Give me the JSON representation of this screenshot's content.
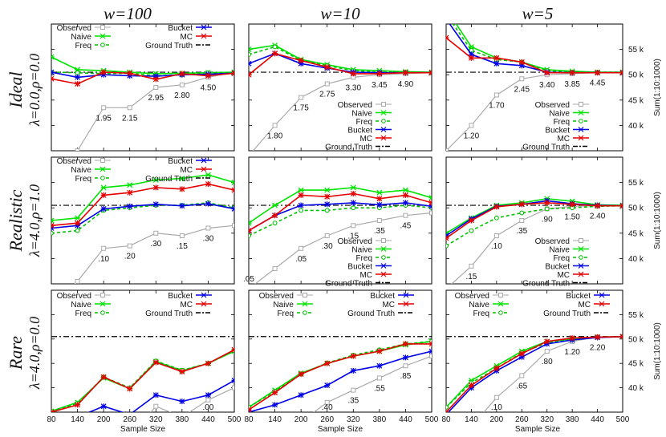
{
  "chart_data": {
    "type": "line",
    "column_titles": [
      "w=100",
      "w=10",
      "w=5"
    ],
    "row_labels": [
      {
        "name": "Ideal",
        "params": "λ=0.0,ρ=0.0"
      },
      {
        "name": "Realistic",
        "params": "λ=4.0,ρ=1.0"
      },
      {
        "name": "Rare",
        "params": "λ=4.0,ρ=0.0"
      }
    ],
    "x": [
      80,
      140,
      200,
      260,
      320,
      380,
      440,
      500
    ],
    "xlabel": "Sample Size",
    "ylabel": "Sum(1:10:1000)",
    "ylim": [
      35,
      60
    ],
    "yticks": [
      40,
      45,
      50,
      55
    ],
    "ytick_labels": [
      "40 k",
      "45 k",
      "50 k",
      "55 k"
    ],
    "ground_truth": 50.5,
    "legend_entries": [
      "Observed",
      "Naive",
      "Freq",
      "Bucket",
      "MC",
      "Ground Truth"
    ],
    "colors": {
      "Observed": "#aaaaaa",
      "Naive": "#00e400",
      "Freq": "#00c000",
      "Bucket": "#0000e6",
      "MC": "#e60000",
      "Ground Truth": "#000000"
    },
    "panels": [
      {
        "row": 0,
        "col": 0,
        "series": {
          "Observed": [
            26,
            35,
            43.5,
            43.5,
            47.5,
            48,
            49.5,
            50.5
          ],
          "Naive": [
            53.5,
            51,
            50.8,
            50.5,
            50.2,
            50.3,
            50.4,
            50.5
          ],
          "Freq": [
            50.5,
            50.4,
            50.2,
            50.3,
            49.8,
            50,
            50.4,
            50.4
          ],
          "Bucket": [
            50.5,
            49.5,
            50,
            49.8,
            49.7,
            50,
            50.1,
            50.3
          ],
          "MC": [
            49.2,
            48.2,
            50.5,
            50.3,
            49.1,
            50.2,
            49.8,
            50.3
          ]
        },
        "annotations": [
          {
            "x": 200,
            "y": 43.5,
            "text": "1.95"
          },
          {
            "x": 260,
            "y": 43.5,
            "text": "2.15"
          },
          {
            "x": 320,
            "y": 47.5,
            "text": "2.95"
          },
          {
            "x": 380,
            "y": 48,
            "text": "2.80"
          },
          {
            "x": 440,
            "y": 49.5,
            "text": "4.50"
          }
        ]
      },
      {
        "row": 0,
        "col": 1,
        "series": {
          "Observed": [
            34,
            40,
            45.5,
            48.2,
            49.5,
            50,
            50.2,
            50.4
          ],
          "Naive": [
            55,
            55.8,
            53,
            52,
            51,
            50.8,
            50.6,
            50.5
          ],
          "Freq": [
            54,
            55.5,
            52.8,
            51.8,
            50.8,
            50.5,
            50.5,
            50.4
          ],
          "Bucket": [
            52.2,
            54.2,
            52.2,
            51.3,
            50.5,
            50.4,
            50.4,
            50.4
          ],
          "MC": [
            50,
            54.2,
            52.8,
            51.5,
            50.2,
            50.2,
            50.4,
            50.4
          ]
        },
        "annotations": [
          {
            "x": 140,
            "y": 40,
            "text": "1.80"
          },
          {
            "x": 200,
            "y": 45.5,
            "text": "1.75"
          },
          {
            "x": 260,
            "y": 48.2,
            "text": "2.75"
          },
          {
            "x": 320,
            "y": 49.5,
            "text": "3.30"
          },
          {
            "x": 380,
            "y": 50,
            "text": "3.45"
          },
          {
            "x": 440,
            "y": 50.2,
            "text": "4.90"
          }
        ]
      },
      {
        "row": 0,
        "col": 2,
        "series": {
          "Observed": [
            35,
            40,
            46,
            49.2,
            50,
            50.2,
            50.4,
            50.5
          ],
          "Naive": [
            63,
            55.5,
            53.3,
            52.5,
            51,
            50.7,
            50.5,
            50.5
          ],
          "Freq": [
            62,
            54.8,
            53,
            52.5,
            50.8,
            50.5,
            50.5,
            50.5
          ],
          "Bucket": [
            61,
            54,
            52.2,
            51.8,
            50.5,
            50.4,
            50.4,
            50.4
          ],
          "MC": [
            57.3,
            53.3,
            53.3,
            52.5,
            50.4,
            50.4,
            50.4,
            50.4
          ]
        },
        "annotations": [
          {
            "x": 140,
            "y": 40,
            "text": "1.20"
          },
          {
            "x": 200,
            "y": 46,
            "text": "1.70"
          },
          {
            "x": 260,
            "y": 49.2,
            "text": "2.45"
          },
          {
            "x": 320,
            "y": 50,
            "text": "3.40"
          },
          {
            "x": 380,
            "y": 50.2,
            "text": "3.85"
          },
          {
            "x": 440,
            "y": 50.4,
            "text": "4.45"
          }
        ]
      },
      {
        "row": 1,
        "col": 0,
        "series": {
          "Observed": [
            30,
            35.5,
            42,
            42.5,
            45,
            44.5,
            46,
            46.5
          ],
          "Naive": [
            47.5,
            48,
            54,
            54.5,
            55.5,
            55.8,
            56.5,
            55
          ],
          "Freq": [
            45,
            45.5,
            49.5,
            50,
            50.5,
            50.5,
            51,
            50
          ],
          "Bucket": [
            46,
            46.5,
            49.8,
            50.3,
            50.7,
            50.4,
            50.8,
            49.8
          ],
          "MC": [
            46.5,
            47,
            52.5,
            53,
            54,
            53.7,
            54.7,
            53.5
          ]
        },
        "annotations": [
          {
            "x": 200,
            "y": 42,
            "text": ".10"
          },
          {
            "x": 260,
            "y": 42.5,
            "text": ".20"
          },
          {
            "x": 320,
            "y": 45,
            "text": ".30"
          },
          {
            "x": 380,
            "y": 44.5,
            "text": ".15"
          },
          {
            "x": 440,
            "y": 46,
            "text": ".30"
          }
        ]
      },
      {
        "row": 1,
        "col": 1,
        "series": {
          "Observed": [
            34,
            38,
            42,
            44.5,
            46.5,
            47.5,
            48.5,
            49
          ],
          "Naive": [
            47,
            50.5,
            53.5,
            53.5,
            54,
            53,
            53.5,
            52
          ],
          "Freq": [
            44.5,
            47,
            49.5,
            49.5,
            50,
            50,
            50.5,
            50
          ],
          "Bucket": [
            45.5,
            48.5,
            50.5,
            50.7,
            51,
            50.6,
            51,
            50.3
          ],
          "MC": [
            45.5,
            48.5,
            52.5,
            52.2,
            52.8,
            51.8,
            52.5,
            51
          ]
        },
        "annotations": [
          {
            "x": 80,
            "y": 34,
            "text": ".05"
          },
          {
            "x": 200,
            "y": 42,
            "text": ".05"
          },
          {
            "x": 260,
            "y": 44.5,
            "text": ".30"
          },
          {
            "x": 320,
            "y": 46.5,
            "text": ".15"
          },
          {
            "x": 380,
            "y": 47.5,
            "text": ".35"
          },
          {
            "x": 440,
            "y": 48.5,
            "text": ".45"
          }
        ]
      },
      {
        "row": 1,
        "col": 2,
        "series": {
          "Observed": [
            34,
            38.5,
            44.5,
            47.5,
            49.8,
            50.3,
            50.4,
            50.5
          ],
          "Naive": [
            45,
            48,
            50.5,
            51,
            51.8,
            51.3,
            50.6,
            50.5
          ],
          "Freq": [
            42.5,
            45.5,
            48,
            49,
            49.8,
            50,
            50.3,
            50.4
          ],
          "Bucket": [
            44.5,
            47.8,
            50.3,
            50.7,
            51.4,
            50.8,
            50.5,
            50.4
          ],
          "MC": [
            44,
            47.5,
            50.2,
            50.7,
            51,
            50.7,
            50.4,
            50.4
          ]
        },
        "annotations": [
          {
            "x": 140,
            "y": 38.5,
            "text": ".15"
          },
          {
            "x": 200,
            "y": 44.5,
            "text": ".10"
          },
          {
            "x": 260,
            "y": 47.5,
            "text": ".35"
          },
          {
            "x": 320,
            "y": 49.8,
            "text": ".90"
          },
          {
            "x": 380,
            "y": 50.3,
            "text": "1.50"
          },
          {
            "x": 440,
            "y": 50.4,
            "text": "2.40"
          }
        ]
      },
      {
        "row": 2,
        "col": 0,
        "series": {
          "Observed": [
            30,
            30,
            30,
            30,
            36.2,
            34,
            37.5,
            40
          ],
          "Naive": [
            35.2,
            37,
            42,
            39.8,
            45.4,
            43.5,
            45,
            47.5
          ],
          "Freq": [
            35.2,
            36.8,
            42.2,
            40,
            45.5,
            43.6,
            45,
            47.6
          ],
          "Bucket": [
            34,
            34,
            36.2,
            34.5,
            38.5,
            37.2,
            38.5,
            41.5
          ],
          "MC": [
            35,
            36.5,
            42.2,
            39.8,
            45.2,
            43.3,
            45,
            47.8
          ]
        },
        "annotations": [
          {
            "x": 440,
            "y": 37.5,
            "text": ".00"
          }
        ]
      },
      {
        "row": 2,
        "col": 1,
        "series": {
          "Observed": [
            30,
            30,
            33,
            37,
            39.5,
            42,
            44.5,
            46.5
          ],
          "Naive": [
            36,
            39.5,
            43,
            45,
            46.5,
            47.5,
            48.8,
            49.5
          ],
          "Freq": [
            36,
            39.3,
            42.8,
            45.1,
            46.7,
            47.8,
            49,
            49.5
          ],
          "Bucket": [
            35,
            36.5,
            38.5,
            40.5,
            43.5,
            44.5,
            46.2,
            47.5
          ],
          "MC": [
            35.5,
            39,
            42.8,
            45,
            46.5,
            47.5,
            49,
            49
          ]
        },
        "annotations": [
          {
            "x": 260,
            "y": 34.8,
            "text": ".40"
          },
          {
            "x": 320,
            "y": 39.5,
            "text": ".35"
          },
          {
            "x": 380,
            "y": 42,
            "text": ".55"
          },
          {
            "x": 440,
            "y": 44.5,
            "text": ".85"
          }
        ]
      },
      {
        "row": 2,
        "col": 2,
        "series": {
          "Observed": [
            30,
            32,
            38,
            42.5,
            47.5,
            49.5,
            50.4,
            50.5
          ],
          "Naive": [
            36,
            41.5,
            44.5,
            47.5,
            49.5,
            50,
            50.4,
            50.5
          ],
          "Freq": [
            36,
            41,
            44,
            47.2,
            49.2,
            50,
            50.4,
            50.5
          ],
          "Bucket": [
            34.5,
            40,
            43.5,
            46.3,
            49,
            49.8,
            50.3,
            50.5
          ],
          "MC": [
            35,
            40.5,
            44,
            47,
            49.5,
            50.2,
            50.4,
            50.5
          ]
        },
        "annotations": [
          {
            "x": 200,
            "y": 38,
            "text": ".10"
          },
          {
            "x": 260,
            "y": 42.5,
            "text": ".65"
          },
          {
            "x": 320,
            "y": 47.5,
            "text": ".80"
          },
          {
            "x": 380,
            "y": 49.5,
            "text": "1.20"
          },
          {
            "x": 440,
            "y": 50.4,
            "text": "2.20"
          }
        ]
      }
    ]
  }
}
